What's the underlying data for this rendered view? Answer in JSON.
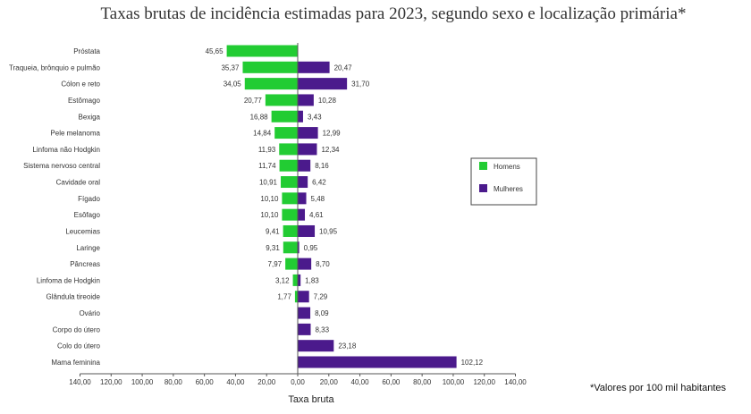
{
  "chart_data": {
    "type": "bar",
    "orientation": "horizontal",
    "title": "Taxas brutas de incidência estimadas para 2023, segundo sexo e localização primária*",
    "xlabel": "Taxa bruta",
    "note": "*Valores por 100 mil habitantes",
    "xlim": [
      -140,
      140
    ],
    "xticks": [
      "140,00",
      "120,00",
      "100,00",
      "80,00",
      "60,00",
      "40,00",
      "20,00",
      "0,00",
      "20,00",
      "40,00",
      "60,00",
      "80,00",
      "100,00",
      "120,00",
      "140,00"
    ],
    "legend_position": "right",
    "categories": [
      "Próstata",
      "Traqueia, brônquio e pulmão",
      "Cólon e reto",
      "Estômago",
      "Bexiga",
      "Pele melanoma",
      "Linfoma não Hodgkin",
      "Sistema nervoso central",
      "Cavidade oral",
      "Fígado",
      "Esôfago",
      "Leucemias",
      "Laringe",
      "Pâncreas",
      "Linfoma de Hodgkin",
      "Glândula tireoide",
      "Ovário",
      "Corpo do útero",
      "Colo do útero",
      "Mama feminina"
    ],
    "series": [
      {
        "name": "Homens",
        "color": "#22cc33",
        "values": [
          45.65,
          35.37,
          34.05,
          20.77,
          16.88,
          14.84,
          11.93,
          11.74,
          10.91,
          10.1,
          10.1,
          9.41,
          9.31,
          7.97,
          3.12,
          1.77,
          null,
          null,
          null,
          null
        ],
        "labels": [
          "45,65",
          "35,37",
          "34,05",
          "20,77",
          "16,88",
          "14,84",
          "11,93",
          "11,74",
          "10,91",
          "10,10",
          "10,10",
          "9,41",
          "9,31",
          "7,97",
          "3,12",
          "1,77",
          "",
          "",
          "",
          ""
        ]
      },
      {
        "name": "Mulheres",
        "color": "#4b1a8c",
        "values": [
          null,
          20.47,
          31.7,
          10.28,
          3.43,
          12.99,
          12.34,
          8.16,
          6.42,
          5.48,
          4.61,
          10.95,
          0.95,
          8.7,
          1.83,
          7.29,
          8.09,
          8.33,
          23.18,
          102.12
        ],
        "labels": [
          "",
          "20,47",
          "31,70",
          "10,28",
          "3,43",
          "12,99",
          "12,34",
          "8,16",
          "6,42",
          "5,48",
          "4,61",
          "10,95",
          "0,95",
          "8,70",
          "1,83",
          "7,29",
          "8,09",
          "8,33",
          "23,18",
          "102,12"
        ]
      }
    ]
  }
}
